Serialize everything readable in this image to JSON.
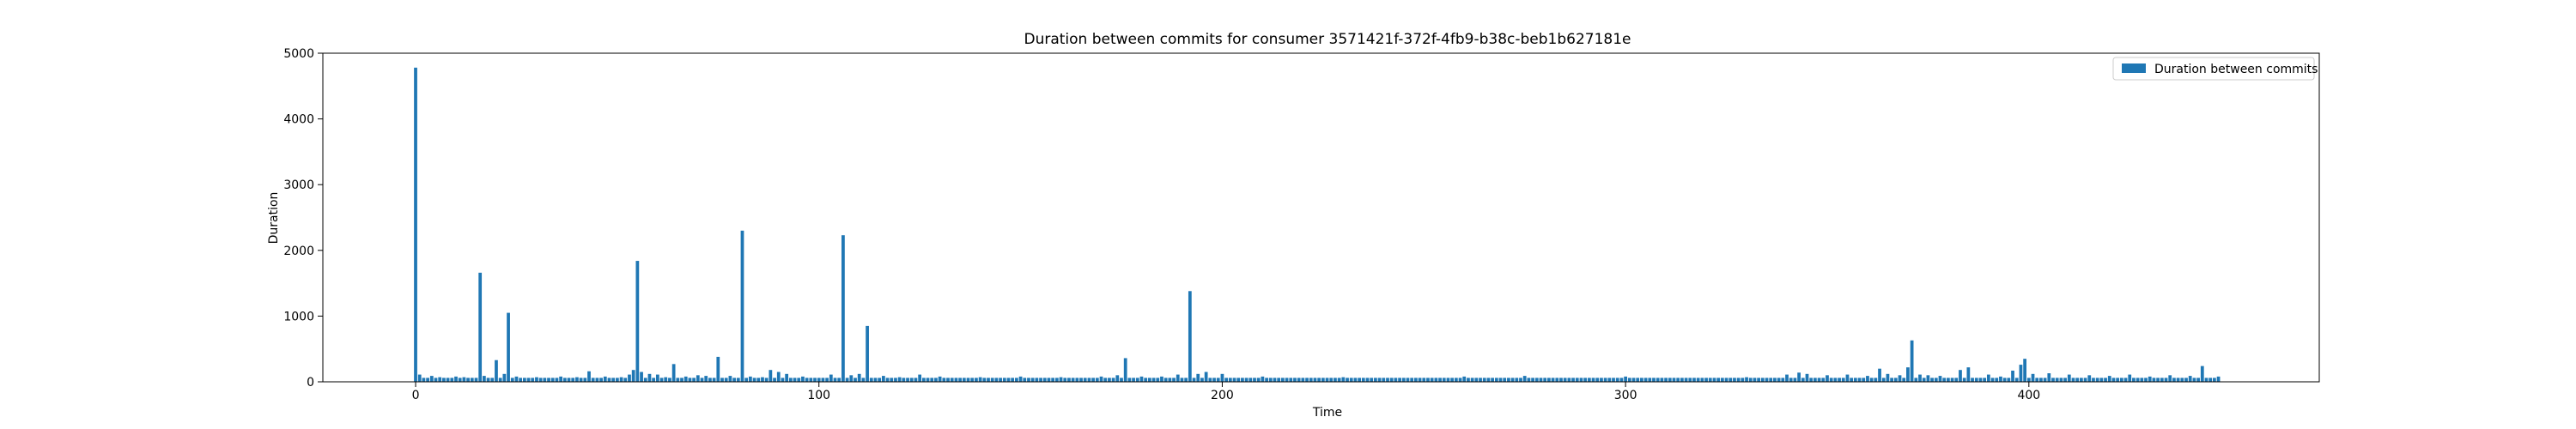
{
  "chart_data": {
    "type": "bar",
    "title": "Duration between commits for consumer 3571421f-372f-4fb9-b38c-beb1b627181e",
    "xlabel": "Time",
    "ylabel": "Duration",
    "xlim": [
      -23,
      472
    ],
    "ylim": [
      0,
      5000
    ],
    "xticks": [
      0,
      100,
      200,
      300,
      400
    ],
    "yticks": [
      0,
      1000,
      2000,
      3000,
      4000,
      5000
    ],
    "grid": false,
    "legend": "top-right",
    "bar_color": "#1f77b4",
    "baseline": 60,
    "x_start": 0,
    "x_end": 447,
    "series": [
      {
        "name": "Duration between commits",
        "points": [
          [
            0,
            4780
          ],
          [
            1,
            110
          ],
          [
            2,
            60
          ],
          [
            4,
            90
          ],
          [
            6,
            70
          ],
          [
            10,
            80
          ],
          [
            12,
            70
          ],
          [
            16,
            1660
          ],
          [
            17,
            90
          ],
          [
            20,
            330
          ],
          [
            22,
            120
          ],
          [
            23,
            1050
          ],
          [
            25,
            80
          ],
          [
            30,
            70
          ],
          [
            36,
            80
          ],
          [
            40,
            70
          ],
          [
            43,
            160
          ],
          [
            47,
            80
          ],
          [
            51,
            70
          ],
          [
            53,
            110
          ],
          [
            54,
            180
          ],
          [
            55,
            1840
          ],
          [
            56,
            150
          ],
          [
            58,
            120
          ],
          [
            60,
            110
          ],
          [
            62,
            70
          ],
          [
            64,
            270
          ],
          [
            67,
            80
          ],
          [
            70,
            100
          ],
          [
            72,
            90
          ],
          [
            75,
            380
          ],
          [
            78,
            90
          ],
          [
            81,
            2300
          ],
          [
            83,
            80
          ],
          [
            86,
            70
          ],
          [
            88,
            180
          ],
          [
            90,
            150
          ],
          [
            92,
            120
          ],
          [
            96,
            80
          ],
          [
            103,
            110
          ],
          [
            106,
            2230
          ],
          [
            108,
            100
          ],
          [
            110,
            120
          ],
          [
            112,
            850
          ],
          [
            116,
            90
          ],
          [
            120,
            70
          ],
          [
            125,
            110
          ],
          [
            130,
            80
          ],
          [
            140,
            70
          ],
          [
            150,
            80
          ],
          [
            160,
            70
          ],
          [
            170,
            80
          ],
          [
            174,
            100
          ],
          [
            176,
            360
          ],
          [
            180,
            80
          ],
          [
            185,
            80
          ],
          [
            189,
            110
          ],
          [
            192,
            1380
          ],
          [
            194,
            120
          ],
          [
            196,
            150
          ],
          [
            200,
            120
          ],
          [
            210,
            80
          ],
          [
            230,
            70
          ],
          [
            260,
            80
          ],
          [
            275,
            90
          ],
          [
            300,
            80
          ],
          [
            330,
            70
          ],
          [
            340,
            110
          ],
          [
            343,
            140
          ],
          [
            345,
            120
          ],
          [
            350,
            100
          ],
          [
            355,
            110
          ],
          [
            360,
            90
          ],
          [
            363,
            200
          ],
          [
            365,
            120
          ],
          [
            368,
            100
          ],
          [
            370,
            220
          ],
          [
            371,
            630
          ],
          [
            373,
            110
          ],
          [
            375,
            100
          ],
          [
            378,
            90
          ],
          [
            383,
            180
          ],
          [
            385,
            220
          ],
          [
            390,
            110
          ],
          [
            393,
            80
          ],
          [
            396,
            170
          ],
          [
            398,
            260
          ],
          [
            399,
            350
          ],
          [
            401,
            120
          ],
          [
            405,
            130
          ],
          [
            410,
            110
          ],
          [
            415,
            100
          ],
          [
            420,
            90
          ],
          [
            425,
            110
          ],
          [
            430,
            80
          ],
          [
            435,
            100
          ],
          [
            440,
            90
          ],
          [
            443,
            240
          ],
          [
            447,
            80
          ]
        ]
      }
    ]
  }
}
